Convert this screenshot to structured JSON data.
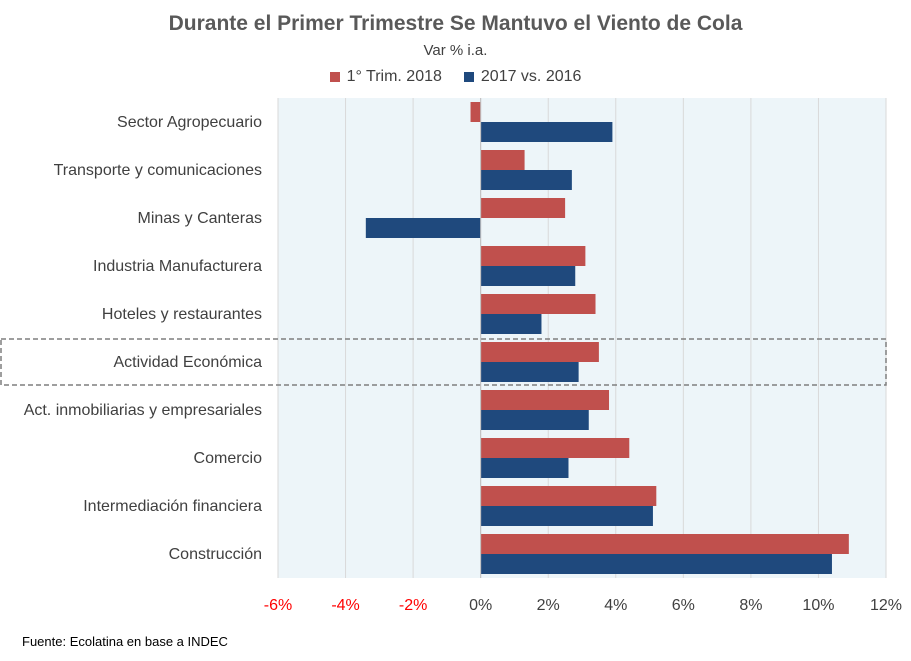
{
  "chart_data": {
    "type": "bar",
    "orientation": "horizontal",
    "title": "Durante el Primer Trimestre Se Mantuvo el Viento de Cola",
    "subtitle": "Var % i.a.",
    "categories": [
      "Sector Agropecuario",
      "Transporte y comunicaciones",
      "Minas y Canteras",
      "Industria Manufacturera",
      "Hoteles y restaurantes",
      "Actividad Económica",
      "Act. inmobiliarias y empresariales",
      "Comercio",
      "Intermediación financiera",
      "Construcción"
    ],
    "highlighted_category": "Actividad Económica",
    "series": [
      {
        "name": "1° Trim. 2018",
        "color": "#C0504D",
        "values": [
          -0.3,
          1.3,
          2.5,
          3.1,
          3.4,
          3.5,
          3.8,
          4.4,
          5.2,
          10.9
        ]
      },
      {
        "name": "2017 vs. 2016",
        "color": "#1F497D",
        "values": [
          3.9,
          2.7,
          -3.4,
          2.8,
          1.8,
          2.9,
          3.2,
          2.6,
          5.1,
          10.4
        ]
      }
    ],
    "xlim": [
      -6,
      12
    ],
    "xticks": [
      -6,
      -4,
      -2,
      0,
      2,
      4,
      6,
      8,
      10,
      12
    ],
    "xtick_labels": [
      "-6%",
      "-4%",
      "-2%",
      "0%",
      "2%",
      "4%",
      "6%",
      "8%",
      "10%",
      "12%"
    ],
    "negative_tick_color": "#FF0000",
    "plot_background": "#EDF5F9",
    "grid": true,
    "legend_position": "top"
  },
  "source_note": "Fuente: Ecolatina en base a INDEC"
}
